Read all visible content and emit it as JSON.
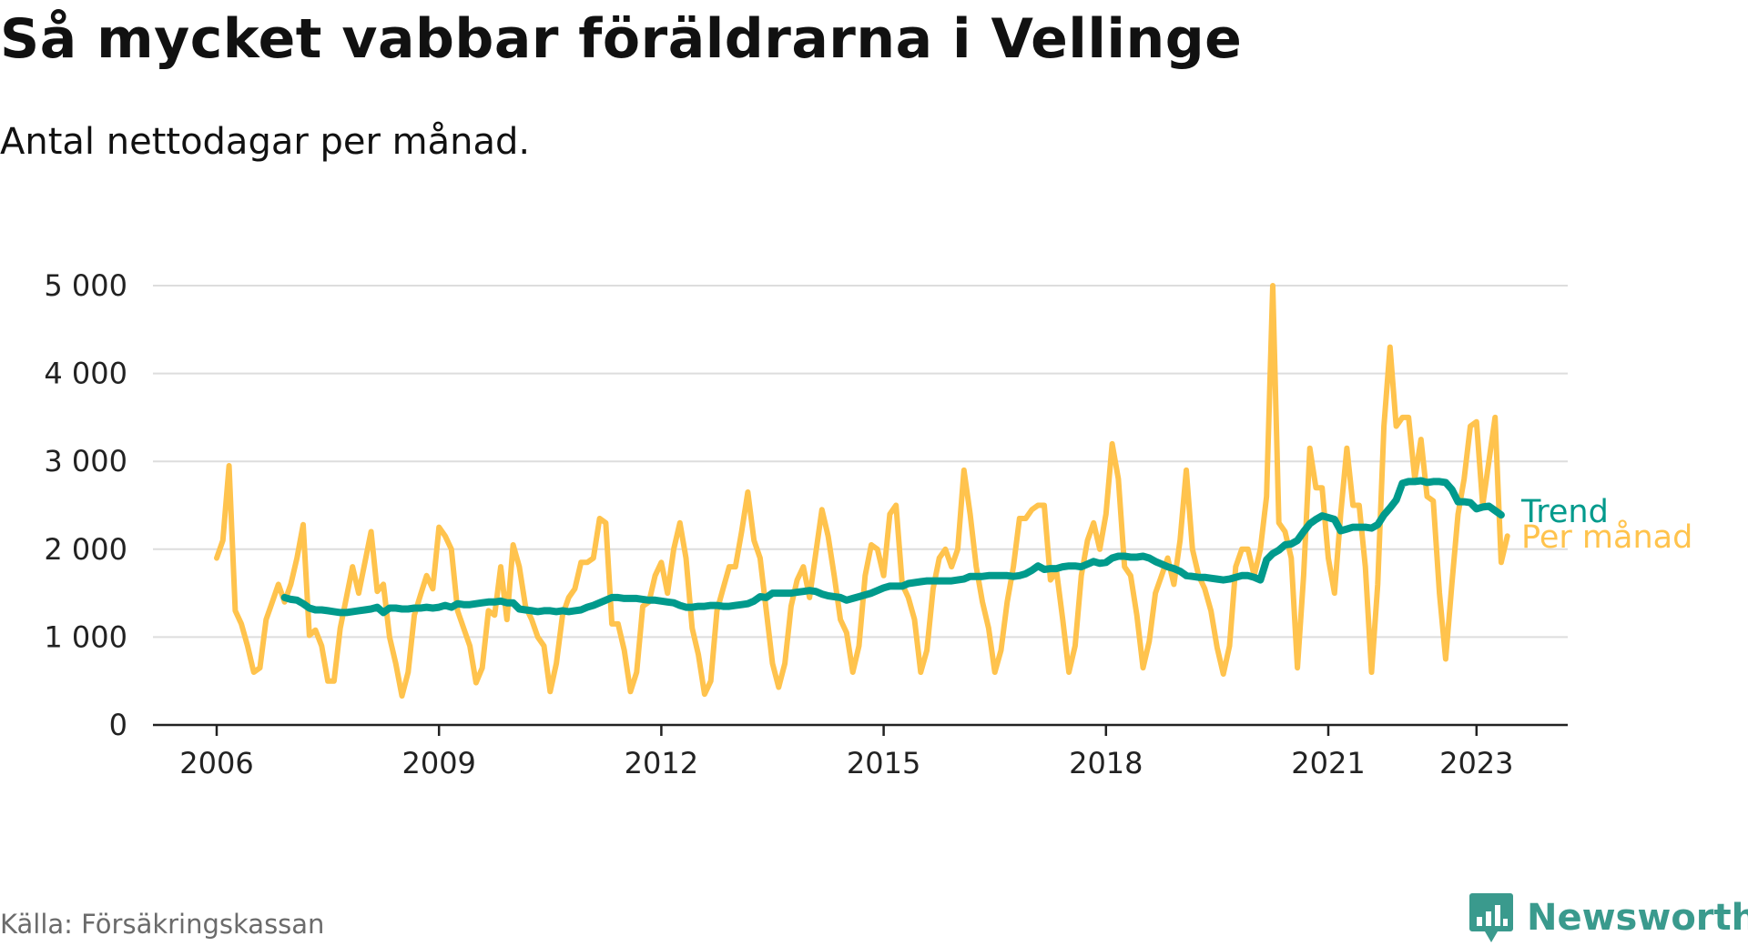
{
  "title": "Så mycket vabbar föräldrarna i Vellinge",
  "subtitle": "Antal nettodagar per månad.",
  "source": "Källa: Försäkringskassan",
  "brand": "Newsworthy",
  "colors": {
    "monthly": "#FFC34D",
    "trend": "#009A8C",
    "grid": "#dddddd",
    "axis": "#222222",
    "brand": "#3a9a8d"
  },
  "chart_data": {
    "type": "line",
    "title": "Så mycket vabbar föräldrarna i Vellinge",
    "subtitle": "Antal nettodagar per månad.",
    "ylim": [
      0,
      5000
    ],
    "y_ticks": [
      0,
      1000,
      2000,
      3000,
      4000,
      5000
    ],
    "y_tick_labels": [
      "0",
      "1 000",
      "2 000",
      "3 000",
      "4 000",
      "5 000"
    ],
    "x_ticks": [
      2006,
      2009,
      2012,
      2015,
      2018,
      2021,
      2023
    ],
    "x_tick_labels": [
      "2006",
      "2009",
      "2012",
      "2015",
      "2018",
      "2021",
      "2023"
    ],
    "grid": true,
    "series": [
      {
        "name": "Per månad",
        "color": "#FFC34D",
        "start": "2006-01",
        "values": [
          1900,
          2100,
          2950,
          1300,
          1150,
          900,
          600,
          650,
          1200,
          1400,
          1600,
          1400,
          1600,
          1900,
          2280,
          1020,
          1080,
          900,
          500,
          500,
          1100,
          1450,
          1800,
          1500,
          1850,
          2200,
          1520,
          1600,
          1000,
          700,
          330,
          600,
          1250,
          1480,
          1700,
          1550,
          2250,
          2150,
          2000,
          1300,
          1100,
          900,
          480,
          650,
          1300,
          1250,
          1800,
          1200,
          2050,
          1800,
          1350,
          1200,
          1000,
          900,
          380,
          700,
          1250,
          1450,
          1550,
          1850,
          1850,
          1900,
          2350,
          2300,
          1150,
          1150,
          850,
          380,
          600,
          1350,
          1400,
          1700,
          1850,
          1500,
          2000,
          2300,
          1900,
          1100,
          800,
          350,
          500,
          1300,
          1550,
          1800,
          1800,
          2200,
          2650,
          2100,
          1900,
          1300,
          700,
          430,
          700,
          1350,
          1650,
          1800,
          1450,
          1950,
          2450,
          2150,
          1700,
          1200,
          1050,
          600,
          900,
          1700,
          2050,
          2000,
          1700,
          2400,
          2500,
          1600,
          1450,
          1200,
          600,
          850,
          1550,
          1900,
          2000,
          1800,
          2000,
          2900,
          2400,
          1800,
          1400,
          1100,
          600,
          850,
          1400,
          1800,
          2350,
          2350,
          2450,
          2500,
          2500,
          1650,
          1750,
          1200,
          600,
          900,
          1700,
          2100,
          2300,
          2000,
          2400,
          3200,
          2800,
          1800,
          1700,
          1250,
          650,
          950,
          1500,
          1700,
          1900,
          1600,
          2100,
          2900,
          2000,
          1700,
          1550,
          1300,
          880,
          580,
          900,
          1800,
          2000,
          2000,
          1700,
          2000,
          2600,
          5000,
          2300,
          2200,
          1900,
          650,
          1700,
          3150,
          2700,
          2700,
          1900,
          1500,
          2400,
          3150,
          2500,
          2500,
          1800,
          600,
          1600,
          3400,
          4300,
          3400,
          3500,
          3500,
          2800,
          3250,
          2600,
          2550,
          1500,
          750,
          1600,
          2400,
          2800,
          3400,
          3450,
          2500,
          3000,
          3500,
          1850,
          2150
        ]
      },
      {
        "name": "Trend",
        "color": "#009A8C",
        "start": "2006-12",
        "values": [
          1450,
          1430,
          1420,
          1380,
          1330,
          1310,
          1310,
          1300,
          1290,
          1280,
          1280,
          1290,
          1300,
          1310,
          1320,
          1340,
          1280,
          1330,
          1330,
          1320,
          1320,
          1330,
          1330,
          1340,
          1330,
          1340,
          1360,
          1340,
          1380,
          1370,
          1370,
          1380,
          1390,
          1400,
          1400,
          1410,
          1390,
          1390,
          1320,
          1310,
          1300,
          1290,
          1300,
          1300,
          1290,
          1300,
          1290,
          1300,
          1310,
          1340,
          1360,
          1390,
          1420,
          1450,
          1450,
          1440,
          1440,
          1440,
          1430,
          1420,
          1420,
          1410,
          1400,
          1390,
          1360,
          1340,
          1340,
          1350,
          1350,
          1360,
          1360,
          1350,
          1350,
          1360,
          1370,
          1380,
          1410,
          1460,
          1450,
          1500,
          1500,
          1500,
          1500,
          1510,
          1520,
          1530,
          1520,
          1490,
          1470,
          1460,
          1450,
          1420,
          1440,
          1460,
          1480,
          1500,
          1530,
          1560,
          1580,
          1580,
          1580,
          1610,
          1620,
          1630,
          1640,
          1640,
          1640,
          1640,
          1640,
          1650,
          1660,
          1690,
          1690,
          1690,
          1700,
          1700,
          1700,
          1700,
          1690,
          1700,
          1720,
          1760,
          1810,
          1770,
          1780,
          1780,
          1800,
          1810,
          1810,
          1800,
          1830,
          1860,
          1840,
          1850,
          1900,
          1920,
          1920,
          1910,
          1910,
          1920,
          1900,
          1860,
          1830,
          1800,
          1780,
          1750,
          1700,
          1690,
          1680,
          1680,
          1670,
          1660,
          1650,
          1660,
          1680,
          1700,
          1700,
          1680,
          1650,
          1880,
          1950,
          1990,
          2050,
          2060,
          2100,
          2200,
          2290,
          2340,
          2380,
          2360,
          2340,
          2210,
          2230,
          2250,
          2250,
          2250,
          2240,
          2280,
          2390,
          2470,
          2560,
          2750,
          2770,
          2770,
          2780,
          2760,
          2770,
          2770,
          2760,
          2680,
          2540,
          2540,
          2530,
          2460,
          2480,
          2490,
          2440,
          2390
        ]
      }
    ]
  }
}
